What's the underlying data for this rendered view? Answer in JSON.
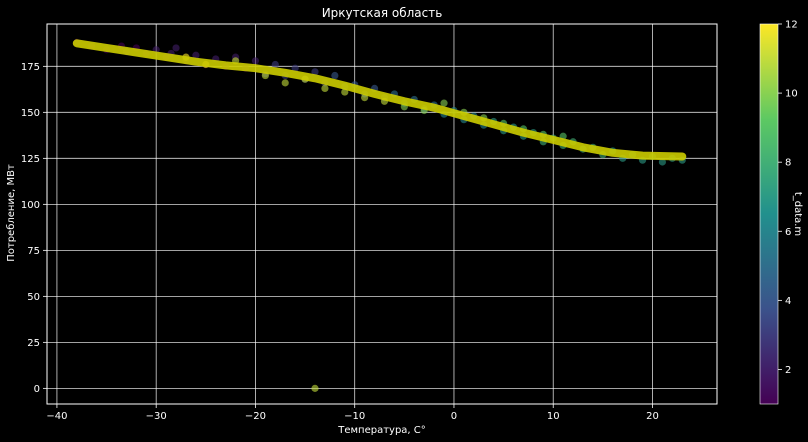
{
  "chart_data": {
    "type": "scatter",
    "title": "Иркутская область",
    "xlabel": "Температура, С°",
    "ylabel": "Потребление, МВт",
    "xlim": [
      -41,
      26.5
    ],
    "ylim": [
      -8.5,
      198
    ],
    "xticks": [
      -40,
      -30,
      -20,
      -10,
      0,
      10,
      20
    ],
    "yticks": [
      0,
      25,
      50,
      75,
      100,
      125,
      150,
      175
    ],
    "grid": true,
    "background": "#000000",
    "colormap": "viridis",
    "colorbar": {
      "label": "t_data.m",
      "range": [
        1,
        12
      ],
      "ticks": [
        2,
        4,
        6,
        8,
        10,
        12
      ]
    },
    "series": [
      {
        "kind": "scatter",
        "color_by": "t_data.m",
        "points": [
          [
            -38,
            188,
            1
          ],
          [
            -36.5,
            186,
            1
          ],
          [
            -35,
            184,
            1
          ],
          [
            -33.5,
            186,
            1
          ],
          [
            -33,
            183,
            2
          ],
          [
            -32,
            185,
            1
          ],
          [
            -31,
            182,
            1
          ],
          [
            -30,
            184,
            2
          ],
          [
            -29,
            180,
            1
          ],
          [
            -28.5,
            182,
            2
          ],
          [
            -28,
            185,
            2
          ],
          [
            -27,
            178,
            1
          ],
          [
            -26,
            181,
            2
          ],
          [
            -25,
            176,
            1
          ],
          [
            -24,
            179,
            2
          ],
          [
            -23,
            175,
            1
          ],
          [
            -22,
            180,
            2
          ],
          [
            -21,
            174,
            1
          ],
          [
            -20,
            178,
            2
          ],
          [
            -19,
            171,
            3
          ],
          [
            -18,
            176,
            3
          ],
          [
            -17,
            170,
            3
          ],
          [
            -16,
            174,
            3
          ],
          [
            -15,
            168,
            3
          ],
          [
            -14,
            172,
            3
          ],
          [
            -13,
            166,
            3
          ],
          [
            -12,
            170,
            4
          ],
          [
            -11,
            164,
            4
          ],
          [
            -10,
            165,
            4
          ],
          [
            -9,
            160,
            4
          ],
          [
            -8,
            163,
            4
          ],
          [
            -7,
            158,
            4
          ],
          [
            -6,
            160,
            5
          ],
          [
            -5,
            155,
            5
          ],
          [
            -4,
            157,
            5
          ],
          [
            -3,
            152,
            5
          ],
          [
            -2,
            154,
            5
          ],
          [
            -1,
            149,
            6
          ],
          [
            0,
            151,
            6
          ],
          [
            1,
            146,
            6
          ],
          [
            2,
            148,
            6
          ],
          [
            3,
            143,
            6
          ],
          [
            4,
            145,
            7
          ],
          [
            5,
            140,
            7
          ],
          [
            6,
            142,
            7
          ],
          [
            7,
            137,
            7
          ],
          [
            8,
            139,
            7
          ],
          [
            9,
            134,
            8
          ],
          [
            10,
            136,
            8
          ],
          [
            11,
            132,
            8
          ],
          [
            12,
            134,
            8
          ],
          [
            13,
            130,
            8
          ],
          [
            14,
            131,
            8
          ],
          [
            15,
            127,
            8
          ],
          [
            16,
            129,
            7
          ],
          [
            17,
            125,
            7
          ],
          [
            18,
            127,
            7
          ],
          [
            19,
            124,
            7
          ],
          [
            20,
            126,
            7
          ],
          [
            21,
            123,
            7
          ],
          [
            22,
            125,
            7
          ],
          [
            23,
            124,
            7
          ],
          [
            -27,
            180,
            12
          ],
          [
            -25,
            176,
            12
          ],
          [
            -22,
            178,
            11
          ],
          [
            -19,
            170,
            11
          ],
          [
            -17,
            166,
            11
          ],
          [
            -15,
            168,
            11
          ],
          [
            -13,
            163,
            11
          ],
          [
            -11,
            161,
            11
          ],
          [
            -9,
            158,
            11
          ],
          [
            -7,
            156,
            11
          ],
          [
            -5,
            153,
            10
          ],
          [
            -3,
            151,
            10
          ],
          [
            -1,
            155,
            10
          ],
          [
            1,
            150,
            10
          ],
          [
            3,
            147,
            10
          ],
          [
            5,
            144,
            9
          ],
          [
            7,
            141,
            9
          ],
          [
            9,
            138,
            9
          ],
          [
            11,
            137,
            9
          ],
          [
            -14,
            0,
            11
          ]
        ]
      },
      {
        "kind": "fit-line",
        "color": "#cccc00",
        "points": [
          [
            -38,
            187.5
          ],
          [
            -35,
            185
          ],
          [
            -32,
            182.5
          ],
          [
            -29,
            180
          ],
          [
            -26,
            177.5
          ],
          [
            -23,
            175.5
          ],
          [
            -20,
            174
          ],
          [
            -17,
            171.5
          ],
          [
            -14,
            168.5
          ],
          [
            -11,
            164.5
          ],
          [
            -8,
            160
          ],
          [
            -5,
            156
          ],
          [
            -2,
            152.5
          ],
          [
            1,
            148
          ],
          [
            4,
            143.5
          ],
          [
            7,
            139
          ],
          [
            10,
            135
          ],
          [
            13,
            131
          ],
          [
            16,
            128
          ],
          [
            19,
            126.5
          ],
          [
            23,
            126
          ]
        ]
      }
    ]
  }
}
